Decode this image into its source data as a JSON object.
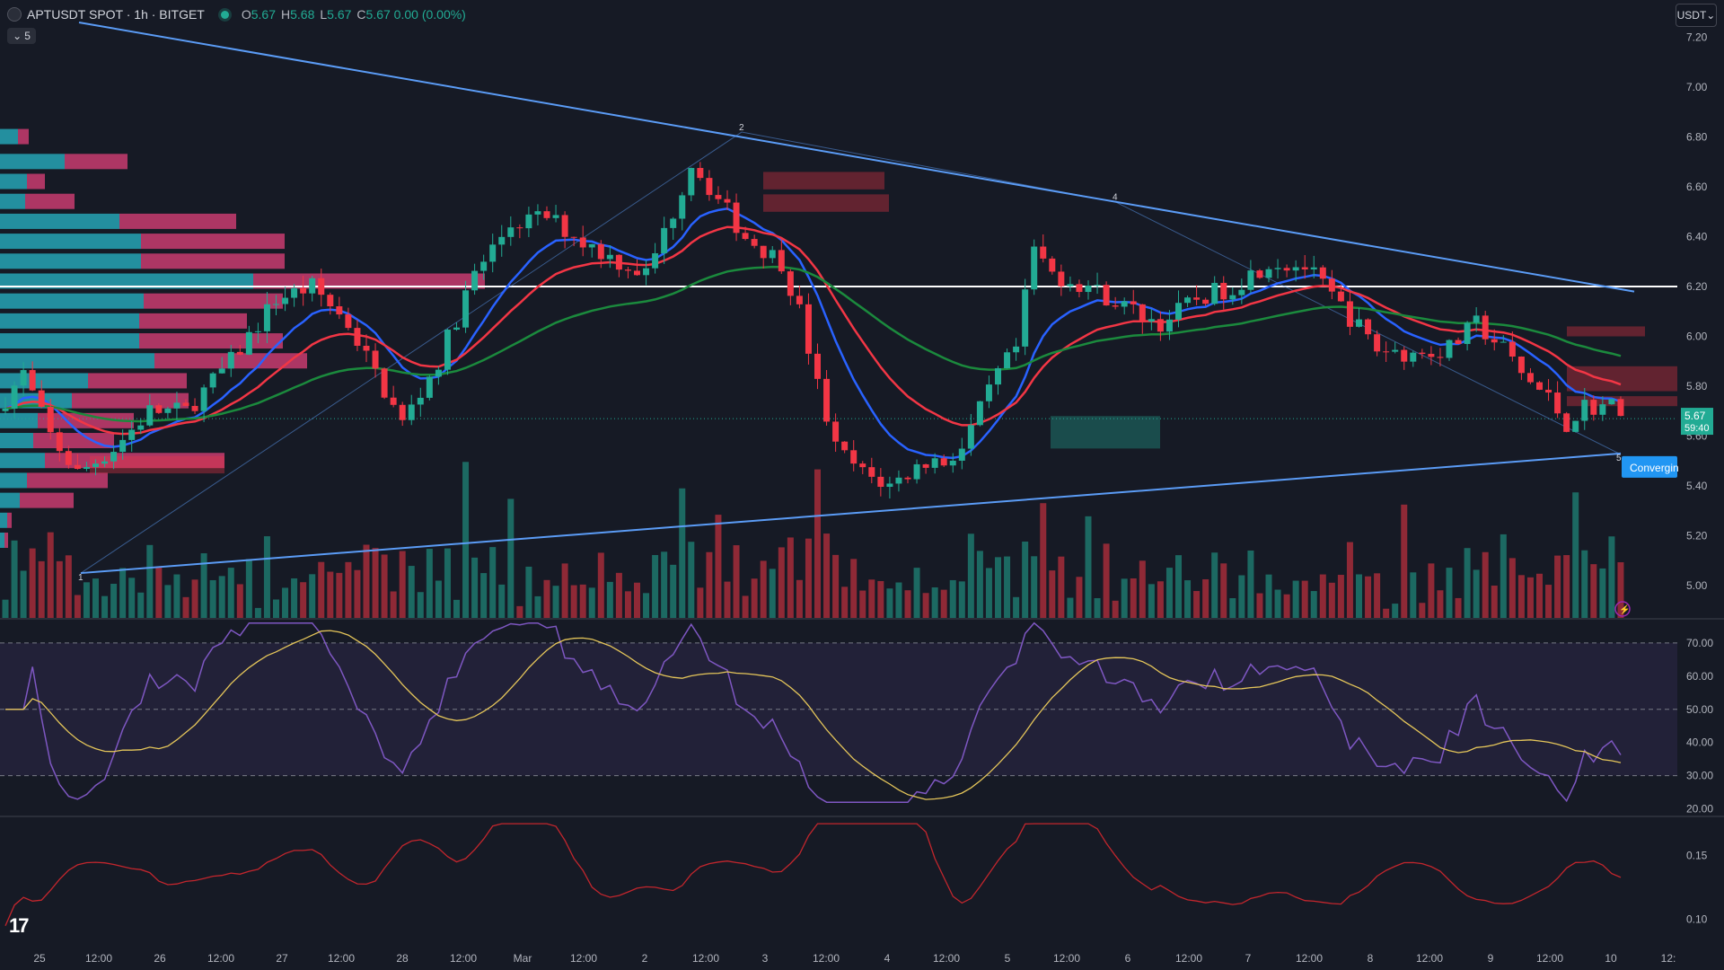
{
  "header": {
    "symbol_line": "APTUSDT SPOT · 1h · BITGET",
    "o_label": "O",
    "o_value": "5.67",
    "h_label": "H",
    "h_value": "5.68",
    "l_label": "L",
    "l_value": "5.67",
    "c_label": "C",
    "c_value": "5.67 0.00 (0.00%)",
    "indicator_toggle": "5",
    "unit_button": "USDT"
  },
  "colors": {
    "background": "#161a25",
    "up": "#22ab94",
    "down": "#f23645",
    "ema_fast": "#2962ff",
    "ema_mid": "#f23645",
    "ema_slow": "#1b8a3d",
    "trendline": "#5b9cf6",
    "rsi": "#7e57c2",
    "rsi_ma": "#e5c65a",
    "osc": "#c2262d"
  },
  "chart_data": [
    {
      "type": "candlestick",
      "pane": "price",
      "y_axis_ticks": [
        "7.20",
        "7.00",
        "6.80",
        "6.60",
        "6.40",
        "6.20",
        "6.00",
        "5.80",
        "5.60",
        "5.40",
        "5.20",
        "5.00"
      ],
      "ylim": [
        4.87,
        7.35
      ],
      "x_axis_labels": [
        "25",
        "12:00",
        "26",
        "12:00",
        "27",
        "12:00",
        "28",
        "12:00",
        "Mar",
        "12:00",
        "2",
        "12:00",
        "3",
        "12:00",
        "4",
        "12:00",
        "5",
        "12:00",
        "6",
        "12:00",
        "7",
        "12:00",
        "8",
        "12:00",
        "9",
        "12:00",
        "10",
        "12:"
      ],
      "last_price": "5.67",
      "countdown": "59:40",
      "horizontal_line": 6.2,
      "pattern_label": "Convergin",
      "pattern_points": [
        "1",
        "2",
        "4",
        "5"
      ],
      "anchors": [
        [
          -1,
          5.7
        ],
        [
          2,
          5.85
        ],
        [
          5,
          5.6
        ],
        [
          8,
          5.45
        ],
        [
          12,
          5.55
        ],
        [
          16,
          5.7
        ],
        [
          20,
          5.7
        ],
        [
          25,
          5.9
        ],
        [
          30,
          6.15
        ],
        [
          34,
          6.2
        ],
        [
          38,
          6.05
        ],
        [
          41,
          5.85
        ],
        [
          44,
          5.65
        ],
        [
          48,
          5.9
        ],
        [
          52,
          6.25
        ],
        [
          56,
          6.45
        ],
        [
          60,
          6.48
        ],
        [
          64,
          6.38
        ],
        [
          68,
          6.3
        ],
        [
          71,
          6.25
        ],
        [
          74,
          6.5
        ],
        [
          76,
          6.7
        ],
        [
          79,
          6.55
        ],
        [
          82,
          6.4
        ],
        [
          86,
          6.3
        ],
        [
          88,
          6.1
        ],
        [
          90,
          5.8
        ],
        [
          92,
          5.55
        ],
        [
          95,
          5.45
        ],
        [
          98,
          5.4
        ],
        [
          100,
          5.45
        ],
        [
          102,
          5.5
        ],
        [
          104,
          5.5
        ],
        [
          106,
          5.55
        ],
        [
          108,
          5.7
        ],
        [
          110,
          5.85
        ],
        [
          112,
          5.95
        ],
        [
          114,
          6.35
        ],
        [
          116,
          6.25
        ],
        [
          120,
          6.2
        ],
        [
          124,
          6.12
        ],
        [
          128,
          6.05
        ],
        [
          132,
          6.15
        ],
        [
          136,
          6.2
        ],
        [
          140,
          6.3
        ],
        [
          144,
          6.28
        ],
        [
          148,
          6.12
        ],
        [
          152,
          5.95
        ],
        [
          156,
          5.93
        ],
        [
          160,
          5.95
        ],
        [
          163,
          6.05
        ],
        [
          166,
          5.95
        ],
        [
          168,
          5.85
        ],
        [
          171,
          5.75
        ],
        [
          173,
          5.65
        ],
        [
          175,
          5.72
        ]
      ],
      "ema_periods": [
        10,
        20,
        50
      ],
      "volume_profile": [
        {
          "price": 6.8,
          "up": 20,
          "down": 12
        },
        {
          "price": 6.7,
          "up": 72,
          "down": 70
        },
        {
          "price": 6.62,
          "up": 30,
          "down": 20
        },
        {
          "price": 6.54,
          "up": 28,
          "down": 55
        },
        {
          "price": 6.46,
          "up": 133,
          "down": 130
        },
        {
          "price": 6.38,
          "up": 157,
          "down": 160
        },
        {
          "price": 6.3,
          "up": 157,
          "down": 160
        },
        {
          "price": 6.22,
          "up": 282,
          "down": 258
        },
        {
          "price": 6.14,
          "up": 160,
          "down": 155
        },
        {
          "price": 6.06,
          "up": 155,
          "down": 120
        },
        {
          "price": 5.98,
          "up": 155,
          "down": 160
        },
        {
          "price": 5.9,
          "up": 172,
          "down": 170
        },
        {
          "price": 5.82,
          "up": 98,
          "down": 110
        },
        {
          "price": 5.74,
          "up": 80,
          "down": 130
        },
        {
          "price": 5.66,
          "up": 42,
          "down": 107
        },
        {
          "price": 5.58,
          "up": 37,
          "down": 90
        },
        {
          "price": 5.5,
          "up": 50,
          "down": 200
        },
        {
          "price": 5.42,
          "up": 30,
          "down": 90
        },
        {
          "price": 5.34,
          "up": 22,
          "down": 60
        },
        {
          "price": 5.26,
          "up": 8,
          "down": 5
        },
        {
          "price": 5.18,
          "up": 5,
          "down": 4
        }
      ]
    },
    {
      "type": "line",
      "pane": "rsi",
      "y_axis_ticks": [
        "70.00",
        "60.00",
        "50.00",
        "40.00",
        "30.00",
        "20.00"
      ],
      "ylim": [
        18,
        77
      ],
      "band": [
        30,
        70
      ],
      "mid": 50
    },
    {
      "type": "line",
      "pane": "oscillator",
      "y_axis_ticks": [
        "0.15",
        "0.10"
      ],
      "ylim": [
        0.08,
        0.18
      ]
    }
  ]
}
